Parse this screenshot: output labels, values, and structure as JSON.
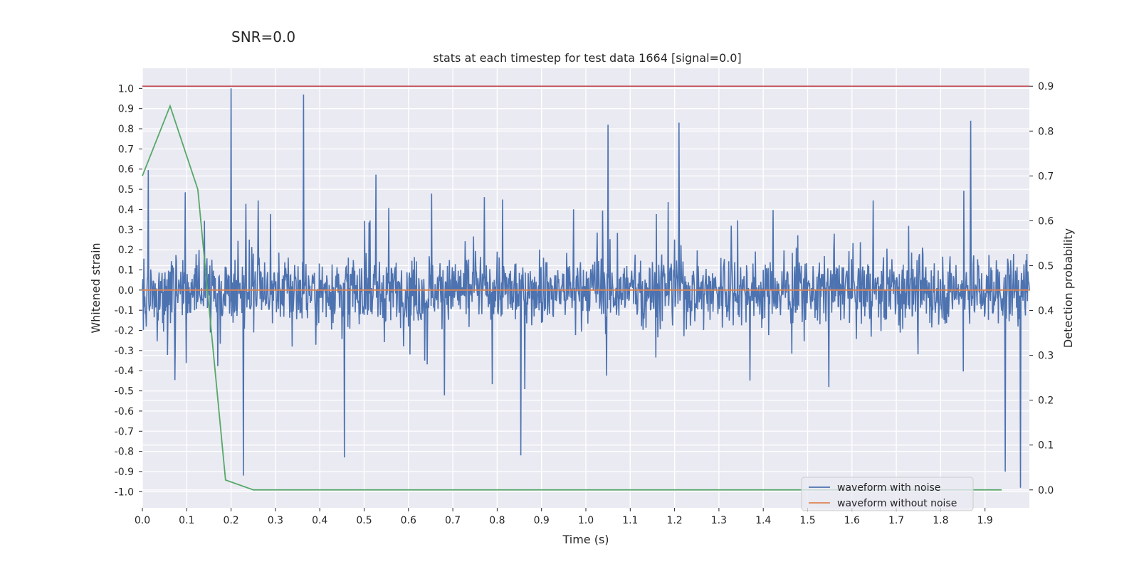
{
  "figure": {
    "suptitle": "SNR=0.0",
    "title": "stats at each timestep for test data 1664 [signal=0.0]"
  },
  "chart_data": {
    "type": "line",
    "title": "stats at each timestep for test data 1664 [signal=0.0]",
    "xlabel": "Time (s)",
    "ylabel": "Whitened strain",
    "y2label": "Detection probability",
    "xlim": [
      0.0,
      2.0
    ],
    "ylim": [
      -1.08,
      1.1
    ],
    "y2lim": [
      -0.04,
      0.94
    ],
    "x_ticks": [
      "0.0",
      "0.1",
      "0.2",
      "0.3",
      "0.4",
      "0.5",
      "0.6",
      "0.7",
      "0.8",
      "0.9",
      "1.0",
      "1.1",
      "1.2",
      "1.3",
      "1.4",
      "1.5",
      "1.6",
      "1.7",
      "1.8",
      "1.9"
    ],
    "y_ticks": [
      "1.0",
      "0.9",
      "0.8",
      "0.7",
      "0.6",
      "0.5",
      "0.4",
      "0.3",
      "0.2",
      "0.1",
      "0.0",
      "-0.1",
      "-0.2",
      "-0.3",
      "-0.4",
      "-0.5",
      "-0.6",
      "-0.7",
      "-0.8",
      "-0.9",
      "-1.0"
    ],
    "y2_ticks": [
      "0.9",
      "0.8",
      "0.7",
      "0.6",
      "0.5",
      "0.4",
      "0.3",
      "0.2",
      "0.1",
      "0.0"
    ],
    "grid": true,
    "legend_position": "bottom-right",
    "series": [
      {
        "name": "waveform with noise",
        "color": "#4c72b0",
        "axis": "left",
        "description_of_shape": "dense noisy waveform",
        "x_range": [
          0.0,
          2.0
        ],
        "y_envelope": [
          -0.98,
          1.0
        ],
        "notable_peaks": [
          [
            0.2,
            1.0
          ],
          [
            0.363,
            0.97
          ],
          [
            1.868,
            0.84
          ],
          [
            1.05,
            0.82
          ],
          [
            1.21,
            0.83
          ]
        ],
        "notable_troughs": [
          [
            0.228,
            -0.92
          ],
          [
            0.455,
            -0.83
          ],
          [
            0.853,
            -0.82
          ],
          [
            1.98,
            -0.98
          ],
          [
            1.945,
            -0.9
          ]
        ]
      },
      {
        "name": "waveform without noise",
        "color": "#dd8452",
        "axis": "left",
        "x": [
          0.0,
          2.0
        ],
        "y": [
          0.0,
          0.0
        ]
      },
      {
        "color": "#55a868",
        "axis": "right",
        "x": [
          0.0,
          0.0625,
          0.125,
          0.1875,
          0.25,
          0.3125,
          0.375,
          0.4375,
          0.5,
          0.5625,
          0.625,
          0.6875,
          0.75,
          0.8125,
          0.875,
          0.9375,
          1.0,
          1.0625,
          1.125,
          1.1875,
          1.25,
          1.3125,
          1.375,
          1.4375,
          1.5,
          1.5625,
          1.625,
          1.6875,
          1.75,
          1.8125,
          1.875,
          1.9375
        ],
        "y": [
          0.7,
          0.856,
          0.67,
          0.022,
          0.0,
          0.0,
          0.0,
          0.0,
          0.0,
          0.0,
          0.0,
          0.0,
          0.0,
          0.0,
          0.0,
          0.0,
          0.0,
          0.0,
          0.0,
          0.0,
          0.0,
          0.0,
          0.0,
          0.0,
          0.0,
          0.0,
          0.0,
          0.0,
          0.0,
          0.0,
          0.0,
          0.0
        ]
      },
      {
        "color": "#c44e52",
        "axis": "right",
        "x": [
          0.0,
          2.0
        ],
        "y": [
          0.9,
          0.9
        ]
      }
    ]
  }
}
